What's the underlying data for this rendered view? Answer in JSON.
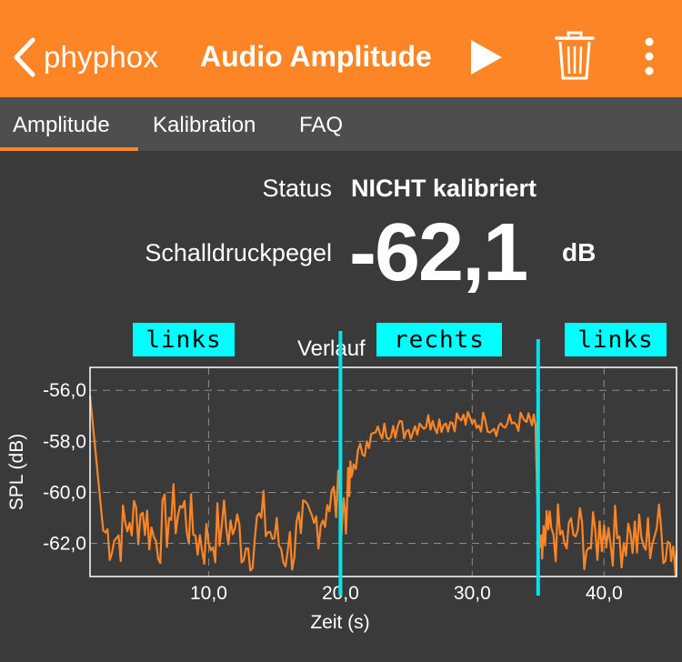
{
  "header": {
    "back_label": "phyphox",
    "title": "Audio Amplitude",
    "color": "#fe8525",
    "icons": [
      "chevron-left-icon",
      "play-icon",
      "trash-icon",
      "more-vertical-icon"
    ]
  },
  "tabs": [
    {
      "label": "Amplitude",
      "active": true
    },
    {
      "label": "Kalibration",
      "active": false
    },
    {
      "label": "FAQ",
      "active": false
    }
  ],
  "info": {
    "status_label": "Status",
    "status_value": "NICHT kalibriert",
    "spl_label": "Schalldruckpegel",
    "spl_value": "-62,1",
    "spl_unit": "dB"
  },
  "graph": {
    "title": "Verlauf"
  },
  "annotations": [
    {
      "label": "links",
      "at_time": 7.0
    },
    {
      "label": "rechts",
      "at_time": 25.5
    },
    {
      "label": "links",
      "at_time": 43.5
    }
  ],
  "annotation_lines": [
    20.0,
    35.0
  ],
  "chart_data": {
    "type": "line",
    "title": "Verlauf",
    "xlabel": "Zeit (s)",
    "ylabel": "SPL (dB)",
    "xlim": [
      1.0,
      45.5
    ],
    "ylim": [
      -63.3,
      -55.1
    ],
    "x_ticks": [
      10,
      20,
      30,
      40
    ],
    "x_tick_labels": [
      "10,0",
      "20,0",
      "30,0",
      "40,0"
    ],
    "y_ticks": [
      -56,
      -58,
      -60,
      -62
    ],
    "y_tick_labels": [
      "-56,0",
      "-58,0",
      "-60,0",
      "-62,0"
    ],
    "grid": true,
    "line_color": "#fe8525",
    "series": [
      {
        "x": [
          1,
          2,
          3,
          4,
          5,
          6,
          7,
          8,
          9,
          10,
          11,
          12,
          13,
          14,
          15,
          16,
          17,
          18,
          19,
          20,
          20.5,
          21,
          22,
          23,
          24,
          25,
          26,
          27,
          28,
          29,
          30,
          31,
          32,
          33,
          34,
          34.8,
          35,
          35.3,
          36,
          37,
          38,
          39,
          40,
          41,
          42,
          43,
          44,
          45,
          45.5
        ],
        "y": [
          -56.2,
          -61.5,
          -61.8,
          -61.2,
          -60.8,
          -61.9,
          -61.0,
          -60.6,
          -61.7,
          -62.0,
          -61.3,
          -61.4,
          -62.2,
          -61.0,
          -61.8,
          -62.3,
          -61.6,
          -61.2,
          -60.5,
          -60.3,
          -60.6,
          -58.9,
          -58.0,
          -57.7,
          -57.4,
          -57.6,
          -57.3,
          -57.2,
          -57.3,
          -57.1,
          -57.3,
          -57.2,
          -57.4,
          -57.3,
          -57.2,
          -57.4,
          -61.6,
          -62.6,
          -61.4,
          -62.0,
          -61.5,
          -62.2,
          -61.3,
          -61.8,
          -61.6,
          -62.1,
          -61.4,
          -62.0,
          -62.3
        ]
      }
    ]
  }
}
